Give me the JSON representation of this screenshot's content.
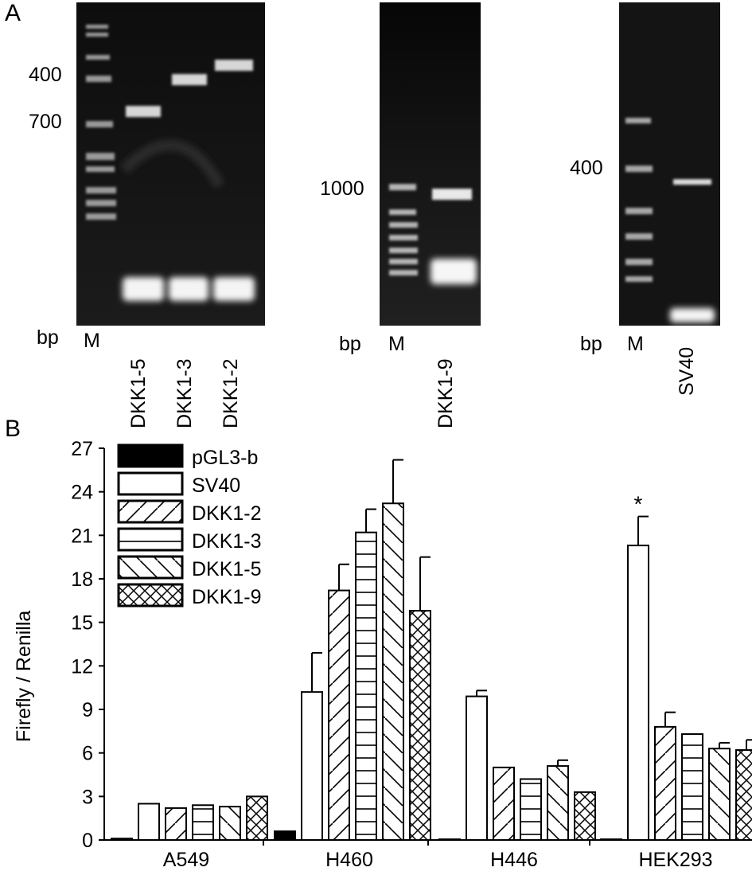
{
  "panelA": {
    "letter": "A",
    "gel1": {
      "markers": [
        "400",
        "700"
      ],
      "bp": "bp",
      "lanes": [
        "M",
        "DKK1-5",
        "DKK1-3",
        "DKK1-2"
      ]
    },
    "gel2": {
      "markers": [
        "1000"
      ],
      "bp": "bp",
      "lanes": [
        "M",
        "DKK1-9"
      ]
    },
    "gel3": {
      "markers": [
        "400"
      ],
      "bp": "bp",
      "lanes": [
        "M",
        "SV40"
      ]
    }
  },
  "panelB": {
    "letter": "B",
    "chart_data": {
      "type": "bar",
      "ylabel": "Firefly / Renilla",
      "xlabel": "",
      "ylim": [
        0,
        27
      ],
      "yticks": [
        0,
        3,
        6,
        9,
        12,
        15,
        18,
        21,
        24,
        27
      ],
      "categories": [
        "A549",
        "H460",
        "H446",
        "HEK293"
      ],
      "legend_position": "top-left",
      "series": [
        {
          "name": "pGL3-b",
          "pattern": "solid",
          "values": [
            0.1,
            0.6,
            0.05,
            0.05
          ],
          "errors": [
            0,
            0,
            0,
            0
          ]
        },
        {
          "name": "SV40",
          "pattern": "empty",
          "values": [
            2.5,
            10.2,
            9.9,
            20.3
          ],
          "errors": [
            0,
            2.7,
            0.4,
            2.0
          ]
        },
        {
          "name": "DKK1-2",
          "pattern": "forward-diagonal",
          "values": [
            2.2,
            17.2,
            5.0,
            7.8
          ],
          "errors": [
            0,
            1.8,
            0,
            1.0
          ]
        },
        {
          "name": "DKK1-3",
          "pattern": "horizontal",
          "values": [
            2.4,
            21.2,
            4.2,
            7.3
          ],
          "errors": [
            0,
            1.6,
            0,
            0
          ]
        },
        {
          "name": "DKK1-5",
          "pattern": "backward-diagonal",
          "values": [
            2.3,
            23.2,
            5.1,
            6.3
          ],
          "errors": [
            0,
            3.0,
            0.4,
            0.4
          ]
        },
        {
          "name": "DKK1-9",
          "pattern": "crosshatch",
          "values": [
            3.0,
            15.8,
            3.3,
            6.2
          ],
          "errors": [
            0,
            3.7,
            0,
            0.7
          ]
        }
      ],
      "annotations": [
        {
          "text": "*",
          "category": "HEK293",
          "series": "SV40"
        }
      ]
    }
  }
}
